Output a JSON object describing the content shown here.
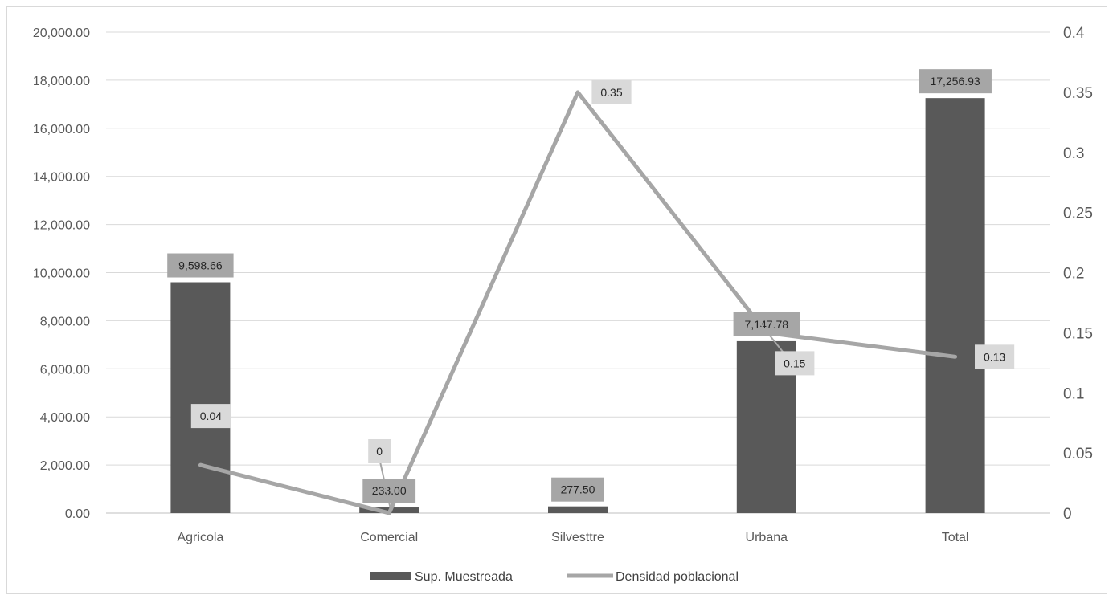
{
  "chart_data": {
    "type": "bar",
    "categories": [
      "Agricola",
      "Comercial",
      "Silvesttre",
      "Urbana",
      "Total"
    ],
    "series": [
      {
        "name": "Sup. Muestreada",
        "type": "bar",
        "axis": "left",
        "color": "#595959",
        "values": [
          9598.66,
          233.0,
          277.5,
          7147.78,
          17256.93
        ],
        "labels": [
          "9,598.66",
          "233.00",
          "277.50",
          "7,147.78",
          "17,256.93"
        ],
        "label_bg": "#a6a6a6"
      },
      {
        "name": "Densidad poblacional",
        "type": "line",
        "axis": "right",
        "color": "#a6a6a6",
        "values": [
          0.04,
          0,
          0.35,
          0.15,
          0.13
        ],
        "labels": [
          "0.04",
          "0",
          "0.35",
          "0.15",
          "0.13"
        ],
        "label_bg": "#d9d9d9"
      }
    ],
    "y_left": {
      "ylim": [
        0,
        20000
      ],
      "ticks": [
        "0.00",
        "2,000.00",
        "4,000.00",
        "6,000.00",
        "8,000.00",
        "10,000.00",
        "12,000.00",
        "14,000.00",
        "16,000.00",
        "18,000.00",
        "20,000.00"
      ]
    },
    "y_right": {
      "ylim": [
        0,
        0.4
      ],
      "ticks": [
        "0",
        "0.05",
        "0.1",
        "0.15",
        "0.2",
        "0.25",
        "0.3",
        "0.35",
        "0.4"
      ]
    },
    "grid": true,
    "legend": "bottom",
    "title": "",
    "xlabel": "",
    "ylabel": ""
  }
}
